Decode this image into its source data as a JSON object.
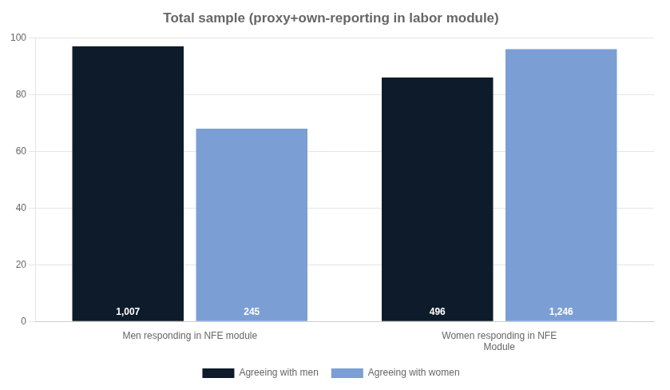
{
  "chart_data": {
    "type": "bar",
    "title": "Total sample (proxy+own-reporting in labor module)",
    "categories": [
      "Men responding in NFE module",
      "Women responding in NFE\nModule"
    ],
    "series": [
      {
        "name": "Agreeing with men",
        "color": "#0d1b2a",
        "values": [
          97,
          86
        ]
      },
      {
        "name": "Agreeing with women",
        "color": "#7B9FD4",
        "values": [
          68,
          96
        ]
      }
    ],
    "annotations": [
      {
        "text": "1,007",
        "series": "Agreeing with men",
        "category": "Men responding in NFE module"
      },
      {
        "text": "496",
        "series": "Agreeing with men",
        "category": "Women responding in NFE\nModule"
      },
      {
        "text": "245",
        "series": "Agreeing with women",
        "category": "Men responding in NFE module"
      },
      {
        "text": "1,246",
        "series": "Agreeing with women",
        "category": "Women responding in NFE\nModule"
      }
    ],
    "ylim": [
      0,
      100
    ],
    "yticks": [
      0,
      20,
      40,
      60,
      80,
      100
    ],
    "grid": true,
    "legend": "bottom"
  }
}
